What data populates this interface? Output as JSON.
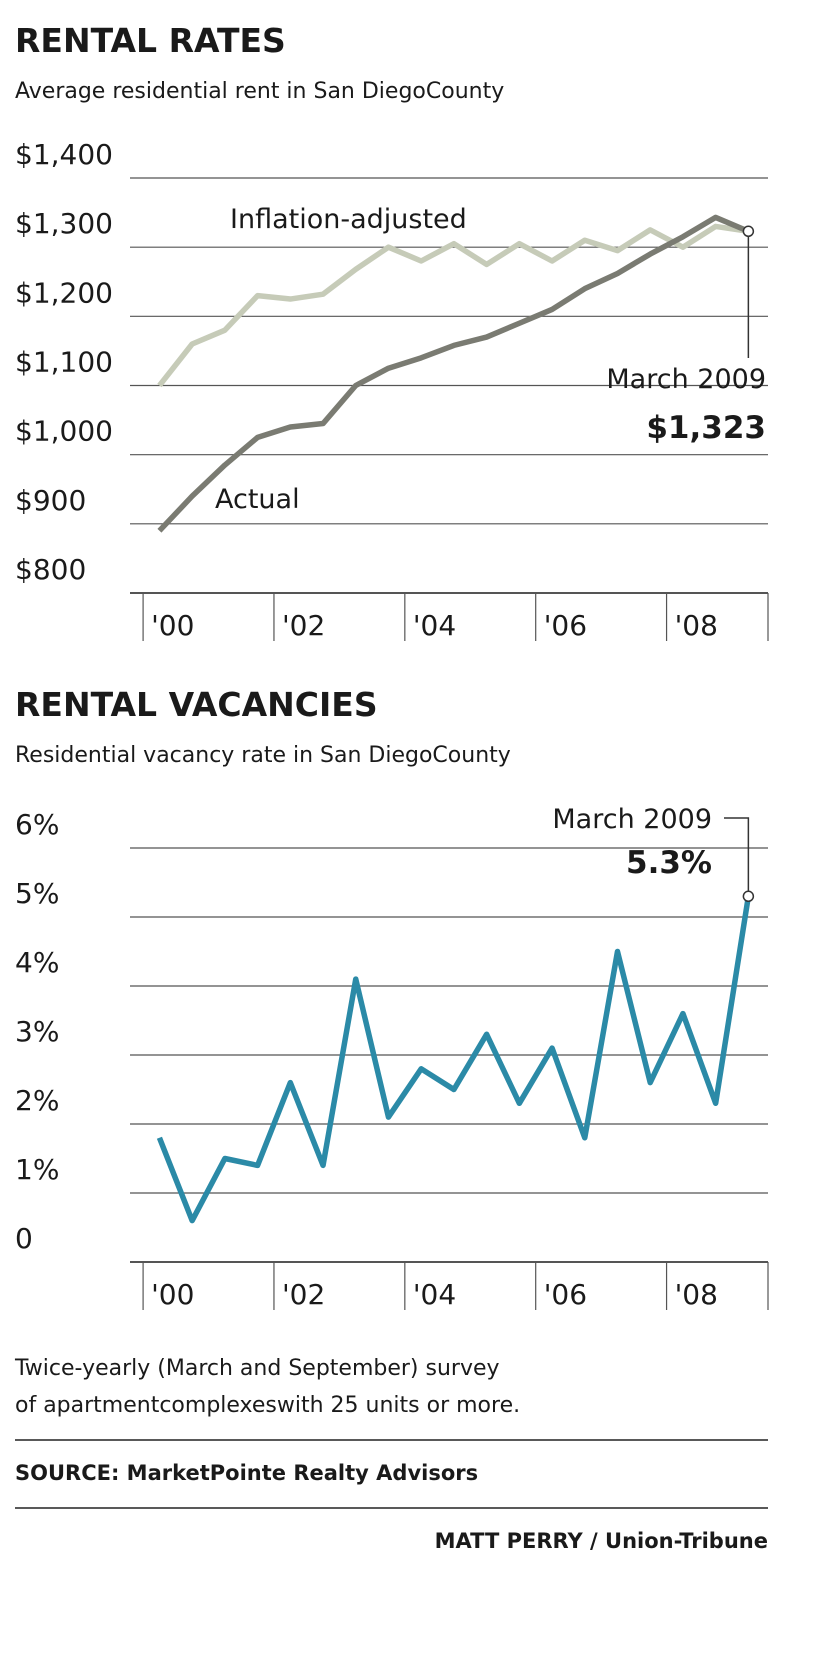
{
  "chart_data": [
    {
      "type": "line",
      "title": "RENTAL RATES",
      "subtitle": "Average residential rent in San DiegoCounty",
      "x": [
        2000.25,
        2000.75,
        2001.25,
        2001.75,
        2002.25,
        2002.75,
        2003.25,
        2003.75,
        2004.25,
        2004.75,
        2005.25,
        2005.75,
        2006.25,
        2006.75,
        2007.25,
        2007.75,
        2008.25,
        2008.75,
        2009.25
      ],
      "series": [
        {
          "name": "Inflation-adjusted",
          "color": "#c6cbb8",
          "values": [
            1100,
            1160,
            1180,
            1230,
            1225,
            1232,
            1268,
            1300,
            1280,
            1305,
            1275,
            1305,
            1280,
            1310,
            1295,
            1325,
            1300,
            1330,
            1323
          ]
        },
        {
          "name": "Actual",
          "color": "#7a7b72",
          "values": [
            890,
            940,
            985,
            1025,
            1040,
            1045,
            1100,
            1125,
            1140,
            1158,
            1170,
            1190,
            1210,
            1240,
            1262,
            1290,
            1315,
            1343,
            1323
          ],
          "value_labels": [
            null,
            null,
            null,
            null,
            null,
            null,
            null,
            null,
            null,
            null,
            null,
            null,
            null,
            null,
            null,
            null,
            null,
            null,
            "$1,323"
          ]
        }
      ],
      "annotation": "March 2009",
      "xlim": [
        1999.8,
        2009.55
      ],
      "xticks": [
        {
          "value": 2000,
          "label": "'00"
        },
        {
          "value": 2002,
          "label": "'02"
        },
        {
          "value": 2004,
          "label": "'04"
        },
        {
          "value": 2006,
          "label": "'06"
        },
        {
          "value": 2008,
          "label": "'08"
        }
      ],
      "ylim": [
        800,
        1400
      ],
      "yticks": [
        {
          "value": 800,
          "label": "$800"
        },
        {
          "value": 900,
          "label": "$900"
        },
        {
          "value": 1000,
          "label": "$1,000"
        },
        {
          "value": 1100,
          "label": "$1,100"
        },
        {
          "value": 1200,
          "label": "$1,200"
        },
        {
          "value": 1300,
          "label": "$1,300"
        },
        {
          "value": 1400,
          "label": "$1,400"
        }
      ],
      "grid": true
    },
    {
      "type": "line",
      "title": "RENTAL VACANCIES",
      "subtitle": "Residential vacancy rate in San DiegoCounty",
      "x": [
        2000.25,
        2000.75,
        2001.25,
        2001.75,
        2002.25,
        2002.75,
        2003.25,
        2003.75,
        2004.25,
        2004.75,
        2005.25,
        2005.75,
        2006.25,
        2006.75,
        2007.25,
        2007.75,
        2008.25,
        2008.75,
        2009.25
      ],
      "series": [
        {
          "color": "#2b8aa7",
          "values": [
            1.8,
            0.6,
            1.5,
            1.4,
            2.6,
            1.4,
            4.1,
            2.1,
            2.8,
            2.5,
            3.3,
            2.3,
            3.1,
            1.8,
            4.5,
            2.6,
            3.6,
            2.3,
            5.3
          ],
          "value_labels": [
            null,
            null,
            null,
            null,
            null,
            null,
            null,
            null,
            null,
            null,
            null,
            null,
            null,
            null,
            null,
            null,
            null,
            null,
            "5.3%"
          ]
        }
      ],
      "annotation": "March 2009",
      "xlim": [
        1999.8,
        2009.55
      ],
      "xticks": [
        {
          "value": 2000,
          "label": "'00"
        },
        {
          "value": 2002,
          "label": "'02"
        },
        {
          "value": 2004,
          "label": "'04"
        },
        {
          "value": 2006,
          "label": "'06"
        },
        {
          "value": 2008,
          "label": "'08"
        }
      ],
      "ylim": [
        0,
        6
      ],
      "yticks": [
        0,
        {
          "value": 1,
          "label": "1%"
        },
        {
          "value": 2,
          "label": "2%"
        },
        {
          "value": 3,
          "label": "3%"
        },
        {
          "value": 4,
          "label": "4%"
        },
        {
          "value": 5,
          "label": "5%"
        },
        {
          "value": 6,
          "label": "6%"
        }
      ],
      "grid": true
    }
  ],
  "footer": {
    "note": [
      "Twice-yearly (March and September) survey",
      "of apartmentcomplexeswith 25 units or more."
    ],
    "source": "SOURCE: MarketPointe Realty Advisors",
    "credit": "MATT PERRY / Union-Tribune"
  }
}
